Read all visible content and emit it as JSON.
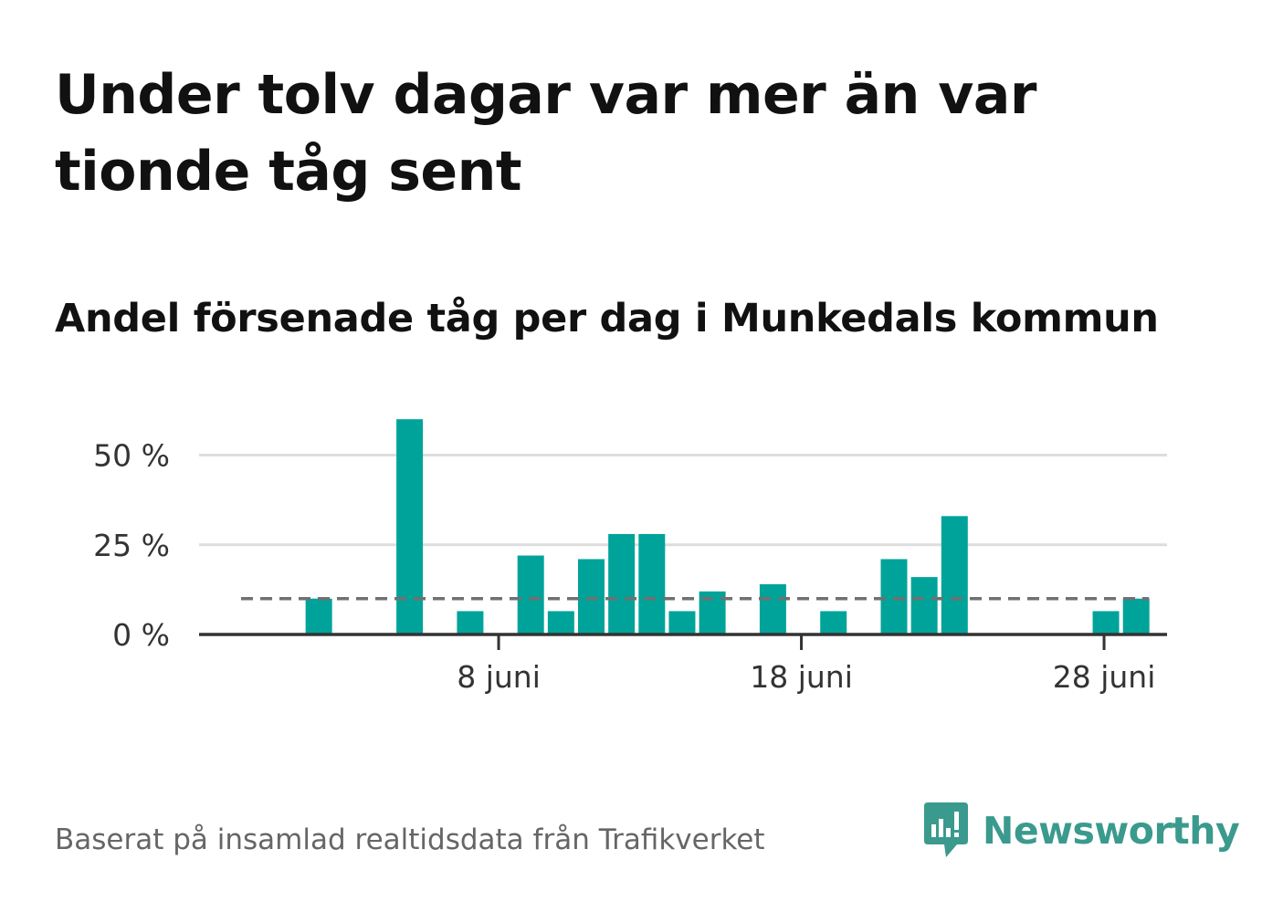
{
  "header": {
    "title": "Under tolv dagar var mer än var tionde tåg sent",
    "subtitle": "Andel försenade tåg per dag i Munkedals kommun"
  },
  "footer": {
    "source": "Baserat på insamlad realtidsdata från Trafikverket",
    "brand": "Newsworthy"
  },
  "colors": {
    "bar": "#00a39a",
    "reference_line": "#707070",
    "grid": "#dddddd",
    "axis": "#333333",
    "brand": "#3a9a8d"
  },
  "chart_data": {
    "type": "bar",
    "title": "Under tolv dagar var mer än var tionde tåg sent",
    "subtitle": "Andel försenade tåg per dag i Munkedals kommun",
    "x": [
      "1 juni",
      "2 juni",
      "3 juni",
      "4 juni",
      "5 juni",
      "6 juni",
      "7 juni",
      "8 juni",
      "9 juni",
      "10 juni",
      "11 juni",
      "12 juni",
      "13 juni",
      "14 juni",
      "15 juni",
      "16 juni",
      "17 juni",
      "18 juni",
      "19 juni",
      "20 juni",
      "21 juni",
      "22 juni",
      "23 juni",
      "24 juni",
      "25 juni",
      "26 juni",
      "27 juni",
      "28 juni",
      "29 juni"
    ],
    "values": [
      0,
      10,
      0,
      0,
      60,
      0,
      6.5,
      0,
      22,
      6.5,
      21,
      28,
      28,
      6.5,
      12,
      0,
      14,
      0,
      6.5,
      0,
      21,
      16,
      33,
      0,
      0,
      0,
      0,
      6.5,
      10
    ],
    "reference_line": 10,
    "xticks": [
      "8 juni",
      "18 juni",
      "28 juni"
    ],
    "xtick_positions": [
      "8 juni",
      "18 juni",
      "28 juni"
    ],
    "yticks": [
      0,
      25,
      50
    ],
    "ytick_labels": [
      "0 %",
      "25 %",
      "50 %"
    ],
    "ylim": [
      0,
      60
    ],
    "unit": "%",
    "grid": true,
    "legend": "none"
  }
}
